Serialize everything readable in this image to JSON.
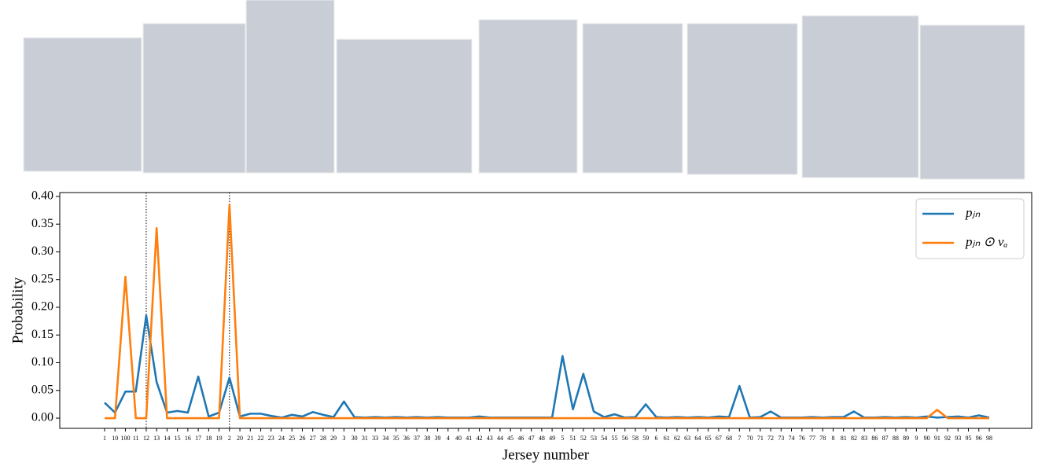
{
  "chart_data": {
    "type": "line",
    "y_label": "Probability",
    "x_label": "Jersey number",
    "categories": [
      "1",
      "10",
      "100",
      "11",
      "12",
      "13",
      "14",
      "15",
      "16",
      "17",
      "18",
      "19",
      "2",
      "20",
      "21",
      "22",
      "23",
      "24",
      "25",
      "26",
      "27",
      "28",
      "29",
      "3",
      "30",
      "31",
      "33",
      "34",
      "35",
      "36",
      "37",
      "38",
      "39",
      "4",
      "40",
      "41",
      "42",
      "43",
      "44",
      "45",
      "46",
      "47",
      "48",
      "49",
      "5",
      "51",
      "52",
      "53",
      "54",
      "55",
      "56",
      "58",
      "59",
      "6",
      "61",
      "62",
      "63",
      "64",
      "65",
      "67",
      "68",
      "7",
      "70",
      "71",
      "72",
      "73",
      "74",
      "76",
      "77",
      "78",
      "8",
      "81",
      "82",
      "83",
      "86",
      "87",
      "88",
      "89",
      "9",
      "90",
      "91",
      "92",
      "93",
      "95",
      "96",
      "98"
    ],
    "series": [
      {
        "name": "pⱼₙ",
        "color": "#1f77b4",
        "values": [
          0.028,
          0.01,
          0.048,
          0.048,
          0.185,
          0.065,
          0.01,
          0.013,
          0.01,
          0.075,
          0.003,
          0.01,
          0.073,
          0.003,
          0.008,
          0.008,
          0.004,
          0.001,
          0.006,
          0.003,
          0.011,
          0.006,
          0.002,
          0.03,
          0.002,
          0.001,
          0.002,
          0.001,
          0.002,
          0.001,
          0.002,
          0.001,
          0.002,
          0.001,
          0.001,
          0.001,
          0.003,
          0.001,
          0.001,
          0.001,
          0.001,
          0.001,
          0.001,
          0.001,
          0.112,
          0.016,
          0.08,
          0.012,
          0.002,
          0.007,
          0.001,
          0.002,
          0.025,
          0.002,
          0.001,
          0.002,
          0.001,
          0.002,
          0.001,
          0.003,
          0.002,
          0.058,
          0.001,
          0.002,
          0.012,
          0.001,
          0.001,
          0.001,
          0.002,
          0.001,
          0.002,
          0.002,
          0.012,
          0.001,
          0.001,
          0.002,
          0.001,
          0.002,
          0.001,
          0.003,
          0.001,
          0.002,
          0.003,
          0.001,
          0.005,
          0.001
        ]
      },
      {
        "name": "pⱼₙ ⊙ vₐ",
        "color": "#ff7f0e",
        "values": [
          0,
          0,
          0.255,
          0,
          0,
          0.343,
          0,
          0,
          0,
          0,
          0,
          0,
          0.385,
          0,
          0,
          0,
          0,
          0,
          0,
          0,
          0,
          0,
          0,
          0,
          0,
          0,
          0,
          0,
          0,
          0,
          0,
          0,
          0,
          0,
          0,
          0,
          0,
          0,
          0,
          0,
          0,
          0,
          0,
          0,
          0,
          0,
          0,
          0,
          0,
          0,
          0,
          0,
          0,
          0,
          0,
          0,
          0,
          0,
          0,
          0,
          0,
          0,
          0,
          0,
          0,
          0,
          0,
          0,
          0,
          0,
          0,
          0,
          0,
          0,
          0,
          0,
          0,
          0,
          0,
          0,
          0.015,
          0,
          0,
          0,
          0,
          0
        ]
      }
    ],
    "vlines": [
      "12",
      "2"
    ],
    "ylim": [
      -0.0184,
      0.407
    ],
    "yticks": [
      {
        "value": 0,
        "label": "0.00"
      },
      {
        "value": 0.05,
        "label": "0.05"
      },
      {
        "value": 0.1,
        "label": "0.10"
      },
      {
        "value": 0.15,
        "label": "0.15"
      },
      {
        "value": 0.2,
        "label": "0.20"
      },
      {
        "value": 0.25,
        "label": "0.25"
      },
      {
        "value": 0.3,
        "label": "0.30"
      },
      {
        "value": 0.35,
        "label": "0.35"
      },
      {
        "value": 0.4,
        "label": "0.40"
      }
    ],
    "legend": "upper right"
  }
}
